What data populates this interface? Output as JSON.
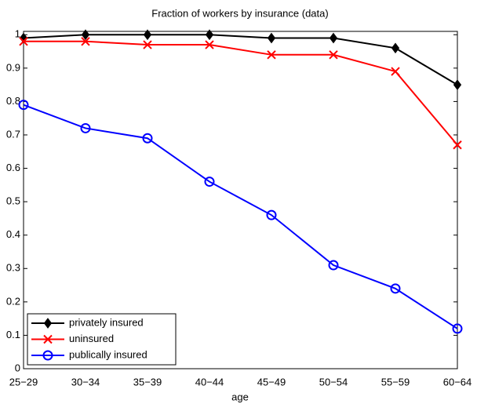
{
  "chart_data": {
    "type": "line",
    "title": "Fraction of workers by insurance (data)",
    "x_label": "age",
    "categories": [
      "25−29",
      "30−34",
      "35−39",
      "40−44",
      "45−49",
      "50−54",
      "55−59",
      "60−64"
    ],
    "series": [
      {
        "name": "privately insured",
        "color": "#000000",
        "marker": "diamond",
        "values": [
          0.99,
          1.0,
          1.0,
          1.0,
          0.99,
          0.99,
          0.96,
          0.85
        ]
      },
      {
        "name": "uninsured",
        "color": "#ff0000",
        "marker": "x",
        "values": [
          0.98,
          0.98,
          0.97,
          0.97,
          0.94,
          0.94,
          0.89,
          0.67
        ]
      },
      {
        "name": "publically insured",
        "color": "#0000ff",
        "marker": "circle",
        "values": [
          0.79,
          0.72,
          0.69,
          0.56,
          0.46,
          0.31,
          0.24,
          0.12
        ]
      }
    ],
    "ylim": [
      0,
      1.01
    ],
    "yticks": [
      0,
      0.1,
      0.2,
      0.3,
      0.4,
      0.5,
      0.6,
      0.7,
      0.8,
      0.9,
      1
    ],
    "grid": false,
    "legend": "lower left"
  }
}
